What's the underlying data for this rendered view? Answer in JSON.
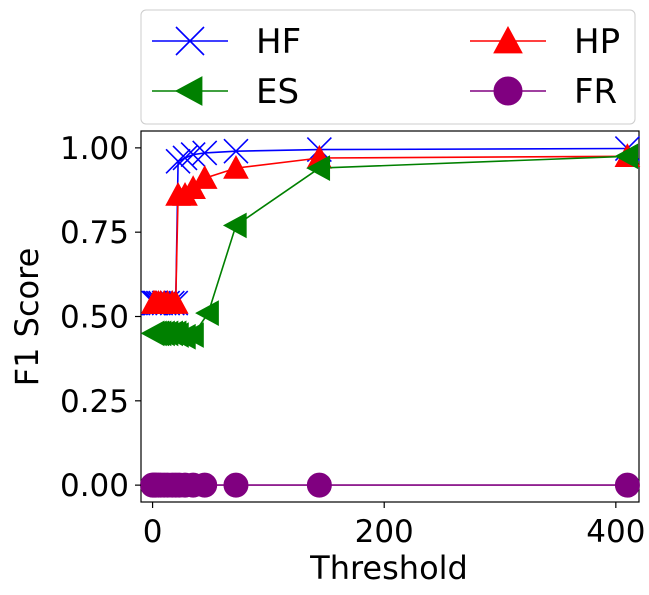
{
  "chart_data": {
    "type": "line",
    "title": "",
    "xlabel": "Threshold",
    "ylabel": "F1 Score",
    "xlim": [
      -10,
      420
    ],
    "ylim": [
      -0.05,
      1.05
    ],
    "xticks": [
      0,
      200,
      400
    ],
    "yticks": [
      0.0,
      0.25,
      0.5,
      0.75,
      1.0
    ],
    "xtick_labels": [
      "0",
      "200",
      "400"
    ],
    "ytick_labels": [
      "0.00",
      "0.25",
      "0.50",
      "0.75",
      "1.00"
    ],
    "grid": false,
    "legend_position": "top, outside plot, two columns",
    "series": [
      {
        "name": "HF",
        "color": "#0000ff",
        "marker": "x",
        "points": [
          [
            1,
            0.54
          ],
          [
            2,
            0.54
          ],
          [
            3,
            0.54
          ],
          [
            5,
            0.54
          ],
          [
            7,
            0.54
          ],
          [
            10,
            0.54
          ],
          [
            13,
            0.54
          ],
          [
            17,
            0.54
          ],
          [
            20,
            0.54
          ],
          [
            22,
            0.96
          ],
          [
            28,
            0.97
          ],
          [
            35,
            0.98
          ],
          [
            45,
            0.985
          ],
          [
            72,
            0.99
          ],
          [
            144,
            0.995
          ],
          [
            410,
            0.998
          ]
        ]
      },
      {
        "name": "HP",
        "color": "#ff0000",
        "marker": "triangle-up",
        "points": [
          [
            1,
            0.54
          ],
          [
            2,
            0.54
          ],
          [
            3,
            0.54
          ],
          [
            5,
            0.54
          ],
          [
            7,
            0.54
          ],
          [
            10,
            0.54
          ],
          [
            13,
            0.54
          ],
          [
            17,
            0.54
          ],
          [
            20,
            0.54
          ],
          [
            22,
            0.86
          ],
          [
            28,
            0.86
          ],
          [
            35,
            0.88
          ],
          [
            45,
            0.91
          ],
          [
            72,
            0.94
          ],
          [
            144,
            0.97
          ],
          [
            410,
            0.975
          ]
        ]
      },
      {
        "name": "ES",
        "color": "#008000",
        "marker": "triangle-left",
        "points": [
          [
            1,
            0.45
          ],
          [
            3,
            0.45
          ],
          [
            5,
            0.45
          ],
          [
            7,
            0.45
          ],
          [
            10,
            0.45
          ],
          [
            13,
            0.45
          ],
          [
            17,
            0.45
          ],
          [
            20,
            0.45
          ],
          [
            22,
            0.445
          ],
          [
            28,
            0.44
          ],
          [
            35,
            0.445
          ],
          [
            48,
            0.51
          ],
          [
            72,
            0.77
          ],
          [
            144,
            0.94
          ],
          [
            410,
            0.975
          ]
        ]
      },
      {
        "name": "FR",
        "color": "#800080",
        "marker": "circle",
        "points": [
          [
            0,
            0.0
          ],
          [
            1,
            0.0
          ],
          [
            2,
            0.0
          ],
          [
            3,
            0.0
          ],
          [
            5,
            0.0
          ],
          [
            7,
            0.0
          ],
          [
            10,
            0.0
          ],
          [
            13,
            0.0
          ],
          [
            17,
            0.0
          ],
          [
            20,
            0.0
          ],
          [
            23,
            0.0
          ],
          [
            28,
            0.0
          ],
          [
            35,
            0.0
          ],
          [
            45,
            0.0
          ],
          [
            72,
            0.0
          ],
          [
            144,
            0.0
          ],
          [
            410,
            0.0
          ]
        ]
      }
    ]
  }
}
